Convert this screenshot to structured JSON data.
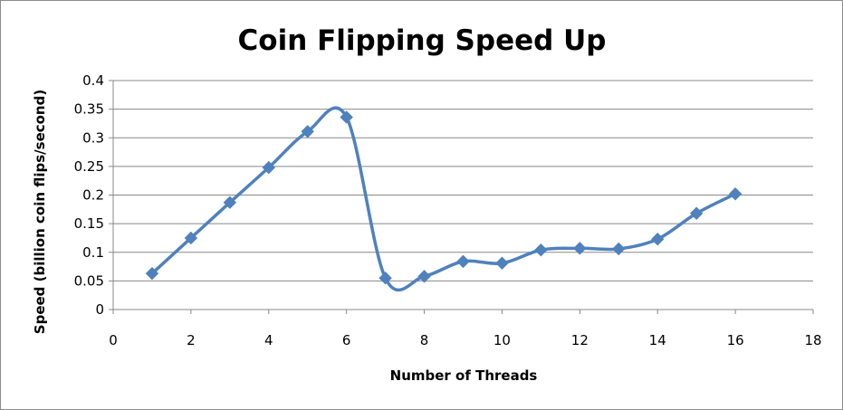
{
  "chart_data": {
    "type": "line",
    "title": "Coin Flipping Speed Up",
    "xlabel": "Number of Threads",
    "ylabel": "Speed (billion coin flips/second)",
    "xlim": [
      0,
      18
    ],
    "ylim": [
      0,
      0.4
    ],
    "x_ticks": [
      "0",
      "2",
      "4",
      "6",
      "8",
      "10",
      "12",
      "14",
      "16",
      "18"
    ],
    "y_ticks": [
      "0",
      "0.05",
      "0.1",
      "0.15",
      "0.2",
      "0.25",
      "0.3",
      "0.35",
      "0.4"
    ],
    "grid": "horizontal",
    "legend": "none",
    "series": [
      {
        "color": "#4f81bd",
        "marker": "diamond",
        "smooth": true,
        "x": [
          1,
          2,
          3,
          4,
          5,
          6,
          7,
          8,
          9,
          10,
          11,
          12,
          13,
          14,
          15,
          16
        ],
        "y": [
          0.063,
          0.125,
          0.187,
          0.248,
          0.311,
          0.336,
          0.055,
          0.058,
          0.084,
          0.081,
          0.104,
          0.107,
          0.106,
          0.123,
          0.168,
          0.202
        ]
      }
    ]
  }
}
